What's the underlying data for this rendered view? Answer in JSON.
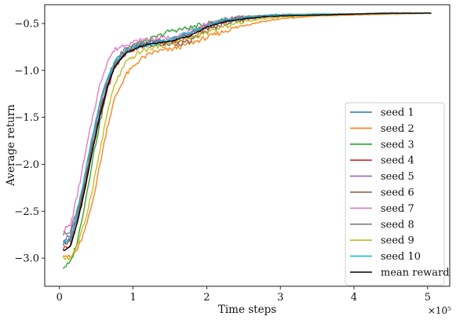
{
  "chart_data": {
    "type": "line",
    "xlabel": "Time steps",
    "ylabel": "Average return",
    "x_offset_text": "×10⁵",
    "xlim": [
      -20000,
      530000
    ],
    "ylim": [
      -3.3,
      -0.3
    ],
    "x_ticks": [
      {
        "value": 0,
        "label": "0"
      },
      {
        "value": 100000,
        "label": "1"
      },
      {
        "value": 200000,
        "label": "2"
      },
      {
        "value": 300000,
        "label": "3"
      },
      {
        "value": 400000,
        "label": "4"
      },
      {
        "value": 500000,
        "label": "5"
      }
    ],
    "y_ticks": [
      {
        "value": -3.0,
        "label": "−3.0"
      },
      {
        "value": -2.5,
        "label": "−2.5"
      },
      {
        "value": -2.0,
        "label": "−2.0"
      },
      {
        "value": -1.5,
        "label": "−1.5"
      },
      {
        "value": -1.0,
        "label": "−1.0"
      },
      {
        "value": -0.5,
        "label": "−0.5"
      }
    ],
    "grid": false,
    "legend_position": "lower right",
    "series": [
      {
        "name": "seed 1",
        "color": "#1f77b4",
        "x": [
          5000,
          15000,
          25000,
          35000,
          45000,
          55000,
          65000,
          75000,
          90000,
          110000,
          130000,
          150000,
          175000,
          200000,
          225000,
          250000,
          275000,
          300000,
          350000,
          400000,
          450000,
          505000
        ],
        "y": [
          -2.85,
          -2.8,
          -2.55,
          -2.2,
          -1.8,
          -1.45,
          -1.15,
          -0.92,
          -0.78,
          -0.72,
          -0.7,
          -0.68,
          -0.62,
          -0.52,
          -0.47,
          -0.44,
          -0.42,
          -0.41,
          -0.4,
          -0.4,
          -0.39,
          -0.39
        ]
      },
      {
        "name": "seed 2",
        "color": "#ff7f0e",
        "x": [
          5000,
          15000,
          25000,
          35000,
          45000,
          55000,
          65000,
          75000,
          90000,
          110000,
          130000,
          150000,
          175000,
          200000,
          225000,
          250000,
          275000,
          300000,
          350000,
          400000,
          450000,
          505000
        ],
        "y": [
          -2.95,
          -3.0,
          -2.9,
          -2.7,
          -2.4,
          -2.0,
          -1.6,
          -1.3,
          -1.05,
          -0.88,
          -0.8,
          -0.78,
          -0.72,
          -0.65,
          -0.58,
          -0.52,
          -0.48,
          -0.45,
          -0.42,
          -0.41,
          -0.4,
          -0.39
        ]
      },
      {
        "name": "seed 3",
        "color": "#2ca02c",
        "x": [
          5000,
          15000,
          25000,
          35000,
          45000,
          55000,
          65000,
          75000,
          90000,
          110000,
          130000,
          150000,
          175000,
          200000,
          225000,
          250000,
          275000,
          300000,
          350000,
          400000,
          450000,
          505000
        ],
        "y": [
          -3.1,
          -3.05,
          -2.8,
          -2.4,
          -1.95,
          -1.55,
          -1.2,
          -0.95,
          -0.8,
          -0.7,
          -0.65,
          -0.58,
          -0.55,
          -0.5,
          -0.46,
          -0.43,
          -0.42,
          -0.41,
          -0.4,
          -0.4,
          -0.39,
          -0.39
        ]
      },
      {
        "name": "seed 4",
        "color": "#d62728",
        "x": [
          5000,
          15000,
          25000,
          35000,
          45000,
          55000,
          65000,
          75000,
          90000,
          110000,
          130000,
          150000,
          175000,
          200000,
          225000,
          250000,
          275000,
          300000,
          350000,
          400000,
          450000,
          505000
        ],
        "y": [
          -2.9,
          -2.85,
          -2.6,
          -2.25,
          -1.85,
          -1.5,
          -1.2,
          -0.97,
          -0.82,
          -0.74,
          -0.72,
          -0.7,
          -0.66,
          -0.55,
          -0.48,
          -0.45,
          -0.43,
          -0.42,
          -0.41,
          -0.4,
          -0.39,
          -0.39
        ]
      },
      {
        "name": "seed 5",
        "color": "#9467bd",
        "x": [
          5000,
          15000,
          25000,
          35000,
          45000,
          55000,
          65000,
          75000,
          90000,
          110000,
          130000,
          150000,
          175000,
          200000,
          225000,
          250000,
          275000,
          300000,
          350000,
          400000,
          450000,
          505000
        ],
        "y": [
          -2.8,
          -2.75,
          -2.5,
          -2.15,
          -1.75,
          -1.4,
          -1.12,
          -0.92,
          -0.78,
          -0.72,
          -0.7,
          -0.68,
          -0.62,
          -0.52,
          -0.47,
          -0.44,
          -0.42,
          -0.41,
          -0.4,
          -0.4,
          -0.39,
          -0.39
        ]
      },
      {
        "name": "seed 6",
        "color": "#8c564b",
        "x": [
          5000,
          15000,
          25000,
          35000,
          45000,
          55000,
          65000,
          75000,
          90000,
          110000,
          130000,
          150000,
          175000,
          200000,
          225000,
          250000,
          275000,
          300000,
          350000,
          400000,
          450000,
          505000
        ],
        "y": [
          -2.85,
          -2.8,
          -2.55,
          -2.2,
          -1.8,
          -1.45,
          -1.15,
          -0.95,
          -0.8,
          -0.74,
          -0.73,
          -0.72,
          -0.7,
          -0.58,
          -0.5,
          -0.46,
          -0.43,
          -0.42,
          -0.41,
          -0.4,
          -0.39,
          -0.39
        ]
      },
      {
        "name": "seed 7",
        "color": "#e377c2",
        "x": [
          5000,
          15000,
          25000,
          35000,
          45000,
          55000,
          65000,
          75000,
          90000,
          110000,
          130000,
          150000,
          175000,
          200000,
          225000,
          250000,
          275000,
          300000,
          350000,
          400000,
          450000,
          505000
        ],
        "y": [
          -2.7,
          -2.65,
          -2.3,
          -1.9,
          -1.5,
          -1.15,
          -0.9,
          -0.78,
          -0.72,
          -0.68,
          -0.66,
          -0.65,
          -0.6,
          -0.5,
          -0.46,
          -0.43,
          -0.42,
          -0.41,
          -0.4,
          -0.4,
          -0.39,
          -0.39
        ]
      },
      {
        "name": "seed 8",
        "color": "#7f7f7f",
        "x": [
          5000,
          15000,
          25000,
          35000,
          45000,
          55000,
          65000,
          75000,
          90000,
          110000,
          130000,
          150000,
          175000,
          200000,
          225000,
          250000,
          275000,
          300000,
          350000,
          400000,
          450000,
          505000
        ],
        "y": [
          -2.75,
          -2.7,
          -2.45,
          -2.1,
          -1.7,
          -1.35,
          -1.08,
          -0.9,
          -0.77,
          -0.71,
          -0.69,
          -0.67,
          -0.62,
          -0.53,
          -0.47,
          -0.44,
          -0.42,
          -0.41,
          -0.4,
          -0.4,
          -0.39,
          -0.39
        ]
      },
      {
        "name": "seed 9",
        "color": "#bcbd22",
        "x": [
          5000,
          15000,
          25000,
          35000,
          45000,
          55000,
          65000,
          75000,
          90000,
          110000,
          130000,
          150000,
          175000,
          200000,
          225000,
          250000,
          275000,
          300000,
          350000,
          400000,
          450000,
          505000
        ],
        "y": [
          -3.0,
          -3.0,
          -2.85,
          -2.6,
          -2.25,
          -1.85,
          -1.45,
          -1.15,
          -0.92,
          -0.8,
          -0.75,
          -0.72,
          -0.66,
          -0.6,
          -0.53,
          -0.48,
          -0.45,
          -0.43,
          -0.41,
          -0.4,
          -0.39,
          -0.39
        ]
      },
      {
        "name": "seed 10",
        "color": "#17becf",
        "x": [
          5000,
          15000,
          25000,
          35000,
          45000,
          55000,
          65000,
          75000,
          90000,
          110000,
          130000,
          150000,
          175000,
          200000,
          225000,
          250000,
          275000,
          300000,
          350000,
          400000,
          450000,
          505000
        ],
        "y": [
          -2.85,
          -2.8,
          -2.5,
          -2.1,
          -1.7,
          -1.35,
          -1.1,
          -0.92,
          -0.8,
          -0.74,
          -0.72,
          -0.68,
          -0.6,
          -0.52,
          -0.47,
          -0.44,
          -0.42,
          -0.41,
          -0.4,
          -0.4,
          -0.39,
          -0.39
        ]
      },
      {
        "name": "mean reward",
        "color": "#000000",
        "x": [
          5000,
          15000,
          25000,
          35000,
          45000,
          55000,
          65000,
          75000,
          90000,
          110000,
          130000,
          150000,
          175000,
          200000,
          225000,
          250000,
          275000,
          300000,
          350000,
          400000,
          450000,
          505000
        ],
        "y": [
          -2.92,
          -2.88,
          -2.6,
          -2.25,
          -1.85,
          -1.48,
          -1.18,
          -0.96,
          -0.82,
          -0.74,
          -0.71,
          -0.69,
          -0.64,
          -0.54,
          -0.48,
          -0.45,
          -0.43,
          -0.42,
          -0.41,
          -0.4,
          -0.39,
          -0.39
        ]
      }
    ]
  }
}
